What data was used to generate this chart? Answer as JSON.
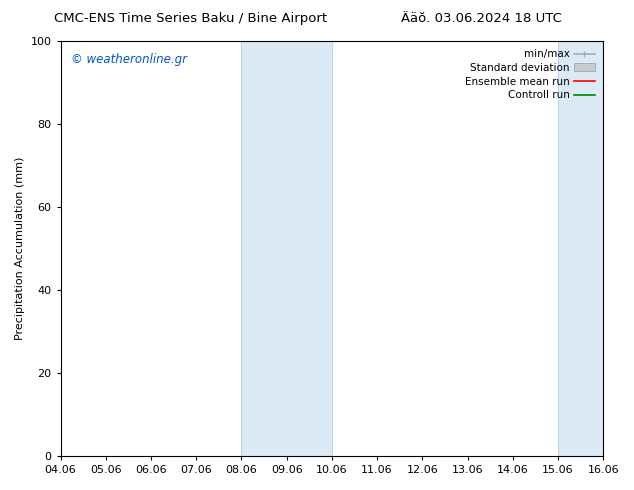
{
  "title_left": "CMC-ENS Time Series Baku / Bine Airport",
  "title_right": "Ääŏ. 03.06.2024 18 UTC",
  "ylabel": "Precipitation Accumulation (mm)",
  "watermark": "© weatheronline.gr",
  "ylim": [
    0,
    100
  ],
  "yticks": [
    0,
    20,
    40,
    60,
    80,
    100
  ],
  "x_labels": [
    "04.06",
    "05.06",
    "06.06",
    "07.06",
    "08.06",
    "09.06",
    "10.06",
    "11.06",
    "12.06",
    "13.06",
    "14.06",
    "15.06",
    "16.06"
  ],
  "shaded_regions": [
    {
      "x_start": "08.06",
      "x_end": "10.06"
    },
    {
      "x_start": "15.06",
      "x_end": "16.06"
    }
  ],
  "shaded_color": "#daeaf7",
  "shaded_border_color": "#b8d4ee",
  "background_color": "#ffffff",
  "plot_bg_color": "#ffffff",
  "legend_items": [
    {
      "label": "min/max",
      "color": "#aaaaaa",
      "lw": 1.2,
      "type": "minmax"
    },
    {
      "label": "Standard deviation",
      "color": "#cccccc",
      "lw": 6,
      "type": "band"
    },
    {
      "label": "Ensemble mean run",
      "color": "#ff0000",
      "lw": 1.2,
      "type": "line"
    },
    {
      "label": "Controll run",
      "color": "#008800",
      "lw": 1.2,
      "type": "line"
    }
  ],
  "watermark_color": "#0055cc",
  "title_fontsize": 9.5,
  "axis_fontsize": 8,
  "ylabel_fontsize": 8,
  "legend_fontsize": 7.5
}
